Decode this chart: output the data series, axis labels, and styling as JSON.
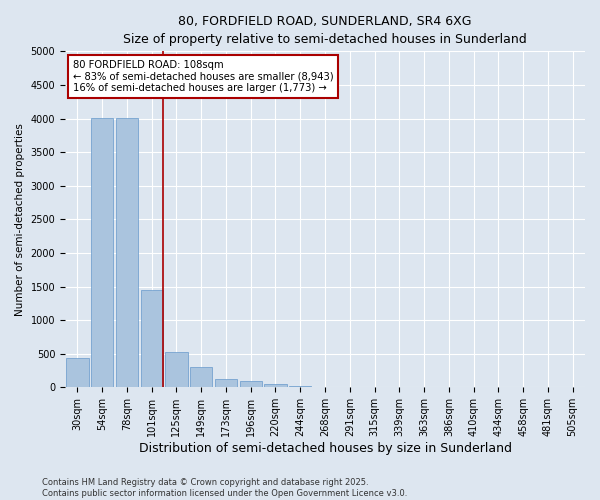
{
  "title": "80, FORDFIELD ROAD, SUNDERLAND, SR4 6XG",
  "subtitle": "Size of property relative to semi-detached houses in Sunderland",
  "xlabel": "Distribution of semi-detached houses by size in Sunderland",
  "ylabel": "Number of semi-detached properties",
  "categories": [
    "30sqm",
    "54sqm",
    "78sqm",
    "101sqm",
    "125sqm",
    "149sqm",
    "173sqm",
    "196sqm",
    "220sqm",
    "244sqm",
    "268sqm",
    "291sqm",
    "315sqm",
    "339sqm",
    "363sqm",
    "386sqm",
    "410sqm",
    "434sqm",
    "458sqm",
    "481sqm",
    "505sqm"
  ],
  "values": [
    430,
    4010,
    4010,
    1450,
    530,
    310,
    130,
    90,
    55,
    15,
    8,
    4,
    2,
    1,
    1,
    0,
    0,
    0,
    0,
    0,
    0
  ],
  "bar_color": "#aac4de",
  "bar_edge_color": "#6699cc",
  "vline_color": "#aa0000",
  "vline_x_after_index": 3,
  "annotation_title": "80 FORDFIELD ROAD: 108sqm",
  "annotation_line1": "← 83% of semi-detached houses are smaller (8,943)",
  "annotation_line2": "16% of semi-detached houses are larger (1,773) →",
  "annotation_box_color": "#aa0000",
  "ylim": [
    0,
    5000
  ],
  "yticks": [
    0,
    500,
    1000,
    1500,
    2000,
    2500,
    3000,
    3500,
    4000,
    4500,
    5000
  ],
  "footnote1": "Contains HM Land Registry data © Crown copyright and database right 2025.",
  "footnote2": "Contains public sector information licensed under the Open Government Licence v3.0.",
  "bg_color": "#dde6f0",
  "plot_bg_color": "#dde6f0",
  "title_fontsize": 9,
  "subtitle_fontsize": 8.5,
  "tick_fontsize": 7,
  "ylabel_fontsize": 7.5,
  "xlabel_fontsize": 9
}
